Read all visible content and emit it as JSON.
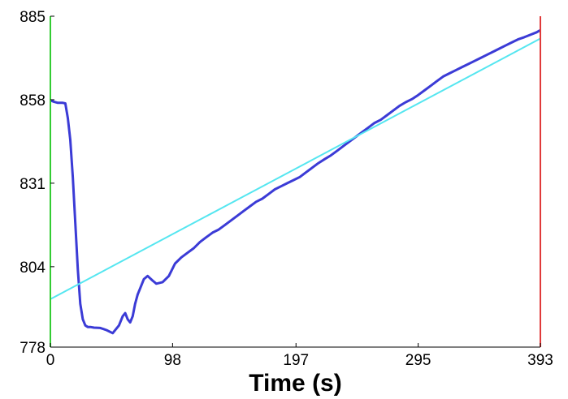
{
  "chart_data": {
    "type": "line",
    "title": "",
    "xlabel": "Time (s)",
    "ylabel": "",
    "xlim": [
      0,
      393
    ],
    "ylim": [
      778,
      885
    ],
    "x_ticks": [
      0,
      98,
      197,
      295,
      393
    ],
    "y_ticks": [
      778,
      804,
      831,
      858,
      885
    ],
    "grid": false,
    "legend": "none",
    "series": [
      {
        "color": "#3b3bd6",
        "x": [
          0,
          3,
          6,
          10,
          12,
          14,
          16,
          18,
          20,
          22,
          24,
          26,
          28,
          30,
          32,
          35,
          40,
          45,
          50,
          55,
          58,
          60,
          62,
          64,
          66,
          68,
          70,
          72,
          75,
          78,
          82,
          85,
          90,
          95,
          100,
          105,
          110,
          115,
          120,
          125,
          130,
          135,
          140,
          145,
          150,
          155,
          160,
          165,
          170,
          175,
          180,
          185,
          190,
          195,
          200,
          205,
          210,
          215,
          220,
          225,
          230,
          235,
          240,
          245,
          250,
          255,
          260,
          265,
          270,
          275,
          280,
          285,
          290,
          295,
          300,
          305,
          310,
          315,
          320,
          325,
          330,
          335,
          340,
          345,
          350,
          355,
          360,
          365,
          370,
          375,
          380,
          385,
          390,
          393
        ],
        "y": [
          857.8,
          857.3,
          857.0,
          857.0,
          856.8,
          852,
          845,
          833,
          818,
          803,
          792,
          787,
          785,
          784.5,
          784.5,
          784.3,
          784.2,
          783.5,
          782.5,
          785,
          788,
          789,
          787,
          786,
          788,
          792,
          795,
          797,
          800,
          801,
          799.5,
          798.5,
          799,
          801,
          805,
          807,
          808.5,
          810,
          812,
          813.5,
          815,
          816,
          817.5,
          819,
          820.5,
          822,
          823.5,
          825,
          826,
          827.5,
          829,
          830,
          831,
          832,
          833,
          834.5,
          836,
          837.5,
          838.8,
          840,
          841.5,
          843,
          844.5,
          846,
          847.5,
          849,
          850.5,
          851.5,
          853,
          854.5,
          856,
          857.2,
          858.2,
          859.5,
          861,
          862.5,
          864,
          865.5,
          866.5,
          867.5,
          868.5,
          869.5,
          870.5,
          871.5,
          872.5,
          873.5,
          874.5,
          875.5,
          876.5,
          877.5,
          878.2,
          879,
          879.8,
          880.5
        ]
      },
      {
        "color": "#55e6f0",
        "x": [
          0,
          393
        ],
        "y": [
          793.5,
          877.8
        ]
      }
    ],
    "annotations": [
      {
        "type": "vline",
        "x": 0,
        "color": "#33cc33"
      },
      {
        "type": "vline",
        "x": 393,
        "color": "#e03a3a"
      }
    ]
  }
}
